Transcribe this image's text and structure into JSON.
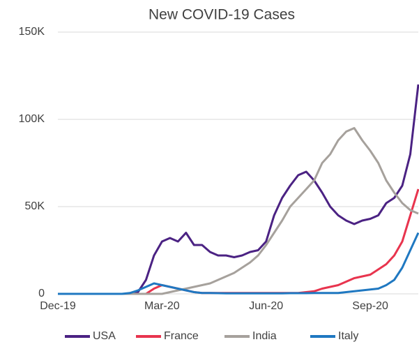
{
  "chart_data": {
    "type": "line",
    "title": "New COVID-19 Cases",
    "categories": [
      "Dec-19",
      null,
      null,
      null,
      null,
      null,
      null,
      null,
      null,
      null,
      null,
      null,
      null,
      "Mar-20",
      null,
      null,
      null,
      null,
      null,
      null,
      null,
      null,
      null,
      null,
      null,
      null,
      "Jun-20",
      null,
      null,
      null,
      null,
      null,
      null,
      null,
      null,
      null,
      null,
      null,
      null,
      "Sep-20",
      null,
      null,
      null,
      null,
      null,
      null
    ],
    "series": [
      {
        "name": "USA",
        "color": "#4b2283",
        "values": [
          0,
          0,
          0,
          0,
          0,
          0,
          0,
          0,
          0,
          0,
          1000,
          8000,
          22000,
          30000,
          32000,
          30000,
          35000,
          28000,
          28000,
          24000,
          22000,
          22000,
          21000,
          22000,
          24000,
          25000,
          30000,
          45000,
          55000,
          62000,
          68000,
          70000,
          65000,
          58000,
          50000,
          45000,
          42000,
          40000,
          42000,
          43000,
          45000,
          52000,
          55000,
          62000,
          80000,
          120000
        ]
      },
      {
        "name": "France",
        "color": "#e8344e",
        "values": [
          0,
          0,
          0,
          0,
          0,
          0,
          0,
          0,
          0,
          0,
          0,
          0,
          3000,
          5000,
          4000,
          3000,
          2000,
          1000,
          500,
          500,
          500,
          500,
          500,
          500,
          500,
          500,
          500,
          500,
          500,
          500,
          500,
          1000,
          1500,
          3000,
          4000,
          5000,
          7000,
          9000,
          10000,
          11000,
          14000,
          17000,
          22000,
          30000,
          45000,
          60000
        ]
      },
      {
        "name": "India",
        "color": "#a6a19c",
        "values": [
          0,
          0,
          0,
          0,
          0,
          0,
          0,
          0,
          0,
          0,
          0,
          0,
          0,
          0,
          1000,
          2000,
          3000,
          4000,
          5000,
          6000,
          8000,
          10000,
          12000,
          15000,
          18000,
          22000,
          28000,
          35000,
          42000,
          50000,
          55000,
          60000,
          65000,
          75000,
          80000,
          88000,
          93000,
          95000,
          88000,
          82000,
          75000,
          65000,
          58000,
          52000,
          48000,
          46000
        ]
      },
      {
        "name": "Italy",
        "color": "#1f78c1",
        "values": [
          0,
          0,
          0,
          0,
          0,
          0,
          0,
          0,
          0,
          500,
          2000,
          4000,
          6000,
          5000,
          4000,
          3000,
          2000,
          1000,
          500,
          500,
          400,
          300,
          300,
          300,
          300,
          300,
          300,
          300,
          300,
          400,
          400,
          400,
          500,
          500,
          500,
          500,
          1000,
          1500,
          2000,
          2500,
          3000,
          5000,
          8000,
          15000,
          25000,
          35000
        ]
      }
    ],
    "ylim": [
      0,
      150000
    ],
    "yticks": [
      {
        "value": 0,
        "label": "0"
      },
      {
        "value": 50000,
        "label": "50K"
      },
      {
        "value": 100000,
        "label": "100K"
      },
      {
        "value": 150000,
        "label": "150K"
      }
    ],
    "grid": true
  }
}
